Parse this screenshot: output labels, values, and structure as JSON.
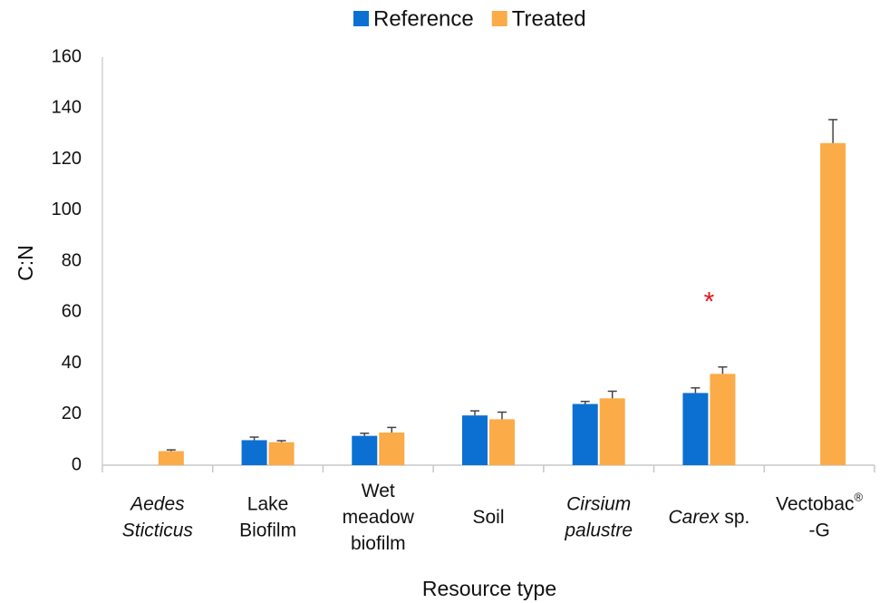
{
  "chart_data": {
    "type": "bar",
    "x_label": "Resource type",
    "y_label": "C:N",
    "categories": [
      "Aedes\nSticticus",
      "Lake\nBiofilm",
      "Wet\nmeadow\nbiofilm",
      "Soil",
      "Cirsium\npalustre",
      "Carex sp.",
      "Vectobac®\n-G"
    ],
    "category_styles": [
      "italic",
      "normal",
      "normal",
      "normal",
      "italic",
      "first-word-italic",
      "normal"
    ],
    "series": [
      {
        "name": "Reference",
        "color": "#0b70d2",
        "values": [
          null,
          9.8,
          11.5,
          19.5,
          24,
          28.3,
          null
        ],
        "errors": [
          null,
          1.2,
          1,
          1.8,
          1,
          2,
          null
        ]
      },
      {
        "name": "Treated",
        "color": "#fbab47",
        "values": [
          5.5,
          9,
          12.8,
          18,
          26.2,
          35.8,
          126.3
        ],
        "errors": [
          0.5,
          0.6,
          2,
          2.8,
          2.8,
          2.7,
          9.2
        ]
      }
    ],
    "annotations": [
      {
        "text": "*",
        "category": 5,
        "color": "#e8141b"
      }
    ],
    "ylim": [
      0,
      160
    ],
    "yticks": [
      0,
      20,
      40,
      60,
      80,
      100,
      120,
      140,
      160
    ],
    "grid": false,
    "legend": "top"
  }
}
